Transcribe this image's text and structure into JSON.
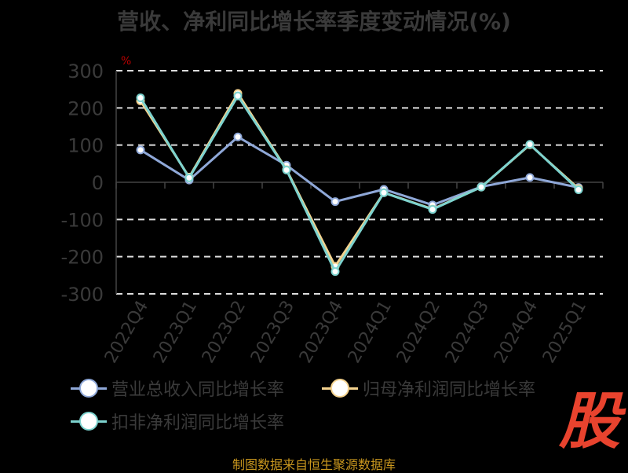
{
  "title": "营收、净利同比增长率季度变动情况(%)",
  "footer": "制图数据来自恒生聚源数据库",
  "watermark": "股",
  "chart_data": {
    "type": "line",
    "title": "营收、净利同比增长率季度变动情况(%)",
    "ylabel": "%",
    "categories": [
      "2022Q4",
      "2023Q1",
      "2023Q2",
      "2023Q3",
      "2023Q4",
      "2024Q1",
      "2024Q2",
      "2024Q3",
      "2024Q4",
      "2025Q1"
    ],
    "ylim": [
      -300,
      300
    ],
    "yticks": [
      "300",
      "200",
      "100",
      "0",
      "-100",
      "-200",
      "-300"
    ],
    "grid": true,
    "legend_position": "bottom",
    "series": [
      {
        "name": "营业总收入同比增长率",
        "color": "#8fa8d8",
        "values": [
          87,
          6,
          122,
          46,
          -52,
          -19,
          -61,
          -12,
          13,
          -14
        ]
      },
      {
        "name": "归母净利润同比增长率",
        "color": "#f5d38f",
        "values": [
          219,
          14,
          239,
          34,
          -226,
          -28,
          -72,
          -13,
          101,
          -17
        ]
      },
      {
        "name": "扣非净利润同比增长率",
        "color": "#7dd3cf",
        "values": [
          227,
          12,
          232,
          33,
          -240,
          -28,
          -73,
          -13,
          102,
          -20
        ]
      }
    ]
  }
}
